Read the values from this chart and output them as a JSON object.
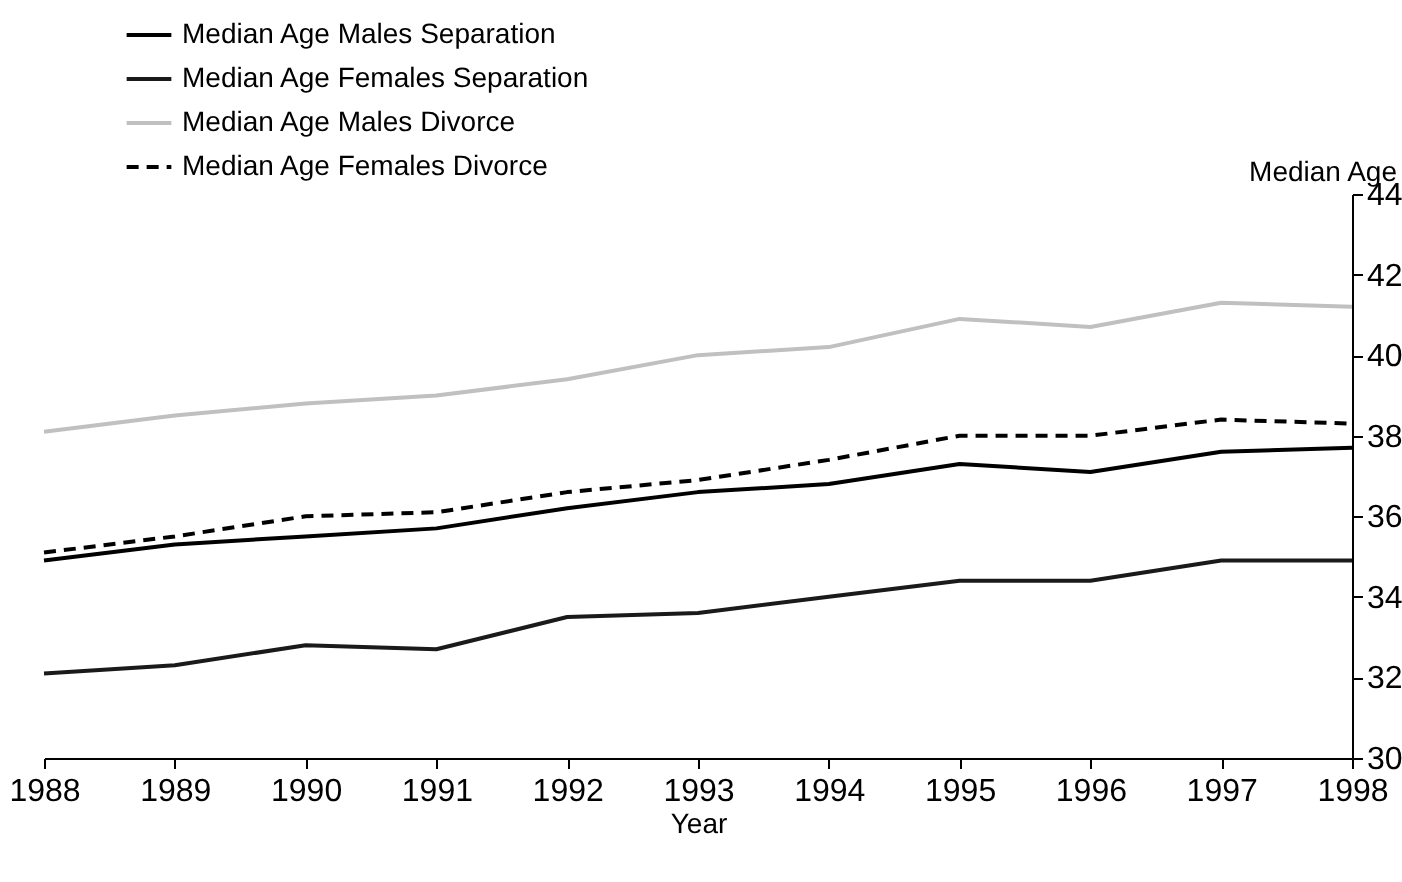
{
  "chart_data": {
    "type": "line",
    "xlabel": "Year",
    "ylabel": "Median Age",
    "categories": [
      "1988",
      "1989",
      "1990",
      "1991",
      "1992",
      "1993",
      "1994",
      "1995",
      "1996",
      "1997",
      "1998"
    ],
    "series": [
      {
        "name": "Median Age Males Separation",
        "color": "#000000",
        "line_style": "solid",
        "values": [
          34.9,
          35.3,
          35.5,
          35.7,
          36.2,
          36.6,
          36.8,
          37.3,
          37.1,
          37.6,
          37.7
        ]
      },
      {
        "name": "Median Age Females Separation",
        "color": "#1a1a1a",
        "line_style": "solid",
        "values": [
          32.1,
          32.3,
          32.8,
          32.7,
          33.5,
          33.6,
          34.0,
          34.4,
          34.4,
          34.9,
          34.9
        ]
      },
      {
        "name": "Median Age Males Divorce",
        "color": "#c0c0c0",
        "line_style": "solid",
        "values": [
          38.1,
          38.5,
          38.8,
          39.0,
          39.4,
          40.0,
          40.2,
          40.9,
          40.7,
          41.3,
          41.2
        ]
      },
      {
        "name": "Median Age Females Divorce",
        "color": "#000000",
        "line_style": "dashed",
        "values": [
          35.1,
          35.5,
          36.0,
          36.1,
          36.6,
          36.9,
          37.4,
          38.0,
          38.0,
          38.4,
          38.3
        ]
      }
    ],
    "ylim": [
      30,
      44
    ],
    "yticks": [
      30,
      32,
      34,
      36,
      38,
      40,
      42,
      44
    ],
    "grid": false,
    "legend": "top left",
    "marker": "none"
  }
}
